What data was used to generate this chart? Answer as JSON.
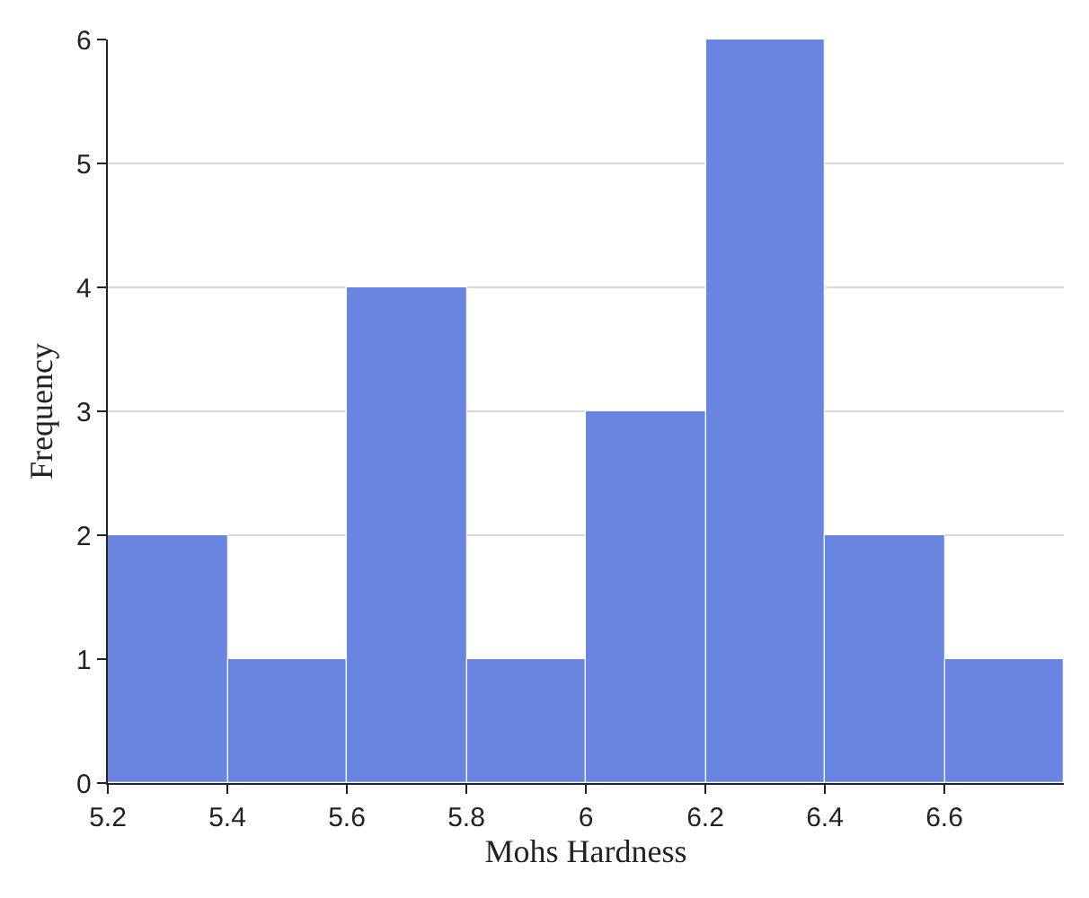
{
  "chart_data": {
    "type": "histogram",
    "xlabel": "Mohs Hardness",
    "ylabel": "Frequency",
    "bins": [
      5.2,
      5.4,
      5.6,
      5.8,
      6.0,
      6.2,
      6.4,
      6.6,
      6.8
    ],
    "values": [
      2,
      1,
      4,
      1,
      3,
      6,
      2,
      1
    ],
    "color": "#6a85e0",
    "xlim": [
      5.2,
      6.8
    ],
    "xticks": [
      5.2,
      5.4,
      5.6,
      5.8,
      6,
      6.2,
      6.4,
      6.6
    ],
    "ylim": [
      0,
      6
    ],
    "yticks": [
      0,
      1,
      2,
      3,
      4,
      5,
      6
    ],
    "grid": "y"
  }
}
